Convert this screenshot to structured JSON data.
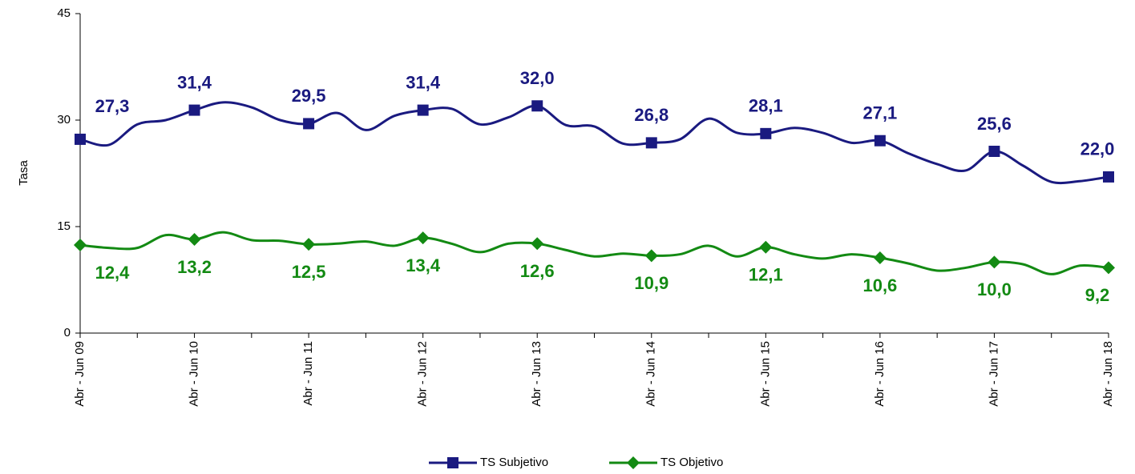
{
  "chart_data": {
    "type": "line",
    "y_label": "Tasa",
    "categories": [
      "Abr - Jun 09",
      null,
      null,
      null,
      "Abr - Jun 10",
      null,
      null,
      null,
      "Abr - Jun 11",
      null,
      null,
      null,
      "Abr - Jun 12",
      null,
      null,
      null,
      "Abr - Jun 13",
      null,
      null,
      null,
      "Abr - Jun 14",
      null,
      null,
      null,
      "Abr - Jun 15",
      null,
      null,
      null,
      "Abr - Jun 16",
      null,
      null,
      null,
      "Abr - Jun 17",
      null,
      null,
      null,
      "Abr - Jun 18"
    ],
    "series": [
      {
        "name": "TS Subjetivo",
        "color": "#1a1a80",
        "marker": "square",
        "values": [
          27.3,
          26.5,
          29.4,
          30.0,
          31.4,
          32.5,
          31.8,
          30.0,
          29.5,
          31.0,
          28.6,
          30.6,
          31.4,
          31.6,
          29.4,
          30.4,
          32.0,
          29.3,
          29.1,
          26.7,
          26.8,
          27.3,
          30.2,
          28.2,
          28.1,
          28.9,
          28.2,
          26.8,
          27.1,
          25.3,
          23.8,
          22.9,
          25.6,
          23.6,
          21.3,
          21.4,
          22.0
        ],
        "value_labels": [
          "27,3",
          null,
          null,
          null,
          "31,4",
          null,
          null,
          null,
          "29,5",
          null,
          null,
          null,
          "31,4",
          null,
          null,
          null,
          "32,0",
          null,
          null,
          null,
          "26,8",
          null,
          null,
          null,
          "28,1",
          null,
          null,
          null,
          "27,1",
          null,
          null,
          null,
          "25,6",
          null,
          null,
          null,
          "22,0"
        ]
      },
      {
        "name": "TS Objetivo",
        "color": "#138a13",
        "marker": "diamond",
        "values": [
          12.4,
          12.0,
          12.0,
          13.8,
          13.2,
          14.2,
          13.1,
          13.0,
          12.5,
          12.6,
          12.9,
          12.3,
          13.4,
          12.6,
          11.4,
          12.6,
          12.6,
          11.7,
          10.8,
          11.2,
          10.9,
          11.1,
          12.3,
          10.8,
          12.1,
          11.1,
          10.5,
          11.1,
          10.6,
          9.8,
          8.8,
          9.2,
          10.0,
          9.7,
          8.3,
          9.5,
          9.2
        ],
        "value_labels": [
          "12,4",
          null,
          null,
          null,
          "13,2",
          null,
          null,
          null,
          "12,5",
          null,
          null,
          null,
          "13,4",
          null,
          null,
          null,
          "12,6",
          null,
          null,
          null,
          "10,9",
          null,
          null,
          null,
          "12,1",
          null,
          null,
          null,
          "10,6",
          null,
          null,
          null,
          "10,0",
          null,
          null,
          null,
          "9,2"
        ]
      }
    ],
    "ylim": [
      0,
      45
    ],
    "yticks": [
      0,
      15,
      30,
      45
    ],
    "grid": false,
    "legend": "bottom",
    "smooth": true
  }
}
